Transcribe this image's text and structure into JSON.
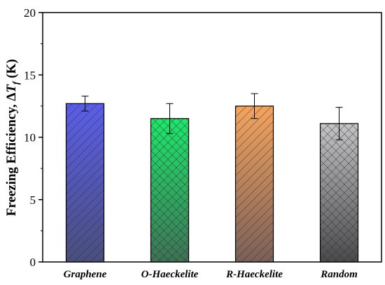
{
  "chart_data": {
    "type": "bar",
    "categories": [
      "Graphene",
      "O-Haeckelite",
      "R-Haeckelite",
      "Random"
    ],
    "values": [
      12.7,
      11.5,
      12.5,
      11.1
    ],
    "errors": [
      0.6,
      1.2,
      1.0,
      1.3
    ],
    "colors": [
      "#5a5ee8",
      "#1ee86a",
      "#f5a45c",
      "#c4c4c4"
    ],
    "colors_bottom": [
      "#4a4f7c",
      "#3e7254",
      "#7a6058",
      "#4a4a4a"
    ],
    "ylabel_main": "Freezing Efficiency, Δ",
    "ylabel_italic": "T",
    "ylabel_sub": "f",
    "ylabel_unit": " (K)",
    "ylim": [
      0,
      20
    ],
    "yticks": [
      0,
      5,
      10,
      15,
      20
    ],
    "grid": false,
    "hatch": [
      "diagonal",
      "crosshatch",
      "diagonal",
      "crosshatch"
    ]
  }
}
